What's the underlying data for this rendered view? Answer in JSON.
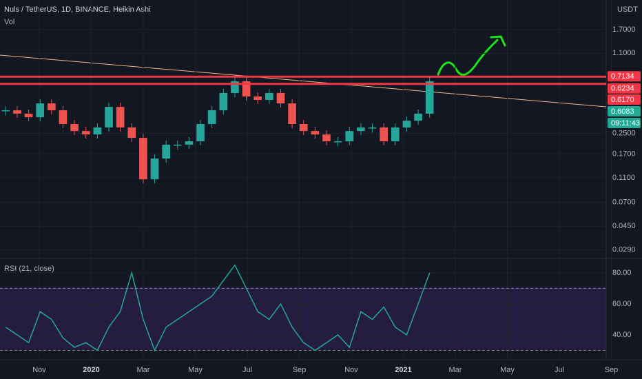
{
  "header": {
    "title": "Nuls / TetherUS, 1D, BINANCE, Heikin Ashi",
    "volume_label": "Vol",
    "currency": "USDT"
  },
  "price_pane": {
    "log": true,
    "ylim": [
      0.0248,
      2.94
    ],
    "yticks": [
      {
        "value": 1.7,
        "label": "1.7000"
      },
      {
        "value": 1.1,
        "label": "1.1000"
      },
      {
        "value": 0.25,
        "label": "0.2500"
      },
      {
        "value": 0.17,
        "label": "0.1700"
      },
      {
        "value": 0.11,
        "label": "0.1100"
      },
      {
        "value": 0.07,
        "label": "0.0700"
      },
      {
        "value": 0.045,
        "label": "0.0450"
      },
      {
        "value": 0.029,
        "label": "0.0290"
      }
    ],
    "levels": [
      {
        "value": 0.7134,
        "label": "0.7134",
        "color": "#f23645"
      },
      {
        "value": 0.6234,
        "label": "0.6234",
        "color": "#f23645"
      }
    ],
    "tags": [
      {
        "label": "0.6170",
        "color": "#f23645"
      },
      {
        "label": "0.6083",
        "color": "#22ab94"
      },
      {
        "label": "09:11:43",
        "color": "#22ab94"
      }
    ],
    "up_color": "#26a69a",
    "down_color": "#ef5350",
    "closes": [
      0.383,
      0.36,
      0.337,
      0.435,
      0.383,
      0.297,
      0.261,
      0.245,
      0.279,
      0.408,
      0.279,
      0.23,
      0.107,
      0.157,
      0.203,
      0.203,
      0.216,
      0.297,
      0.383,
      0.527,
      0.654,
      0.494,
      0.464,
      0.527,
      0.435,
      0.297,
      0.261,
      0.245,
      0.216,
      0.216,
      0.261,
      0.279,
      0.279,
      0.216,
      0.279,
      0.316,
      0.36,
      0.654
    ]
  },
  "rsi_pane": {
    "title": "RSI (21, close)",
    "ylim": [
      24,
      89.3
    ],
    "yticks": [
      {
        "value": 80,
        "label": "80.00"
      },
      {
        "value": 60,
        "label": "60.00"
      },
      {
        "value": 40,
        "label": "40.00"
      }
    ],
    "bands": [
      70,
      30
    ],
    "color": "#26a69a",
    "values": [
      45,
      40,
      35,
      55,
      50,
      38,
      32,
      35,
      30,
      45,
      55,
      80,
      50,
      30,
      45,
      50,
      55,
      60,
      65,
      75,
      85,
      70,
      55,
      50,
      60,
      45,
      35,
      30,
      35,
      40,
      32,
      55,
      50,
      58,
      45,
      40,
      60,
      80
    ]
  },
  "time_axis": [
    "Nov",
    "2020",
    "Mar",
    "May",
    "Jul",
    "Sep",
    "Nov",
    "2021",
    "Mar",
    "May",
    "Jul",
    "Sep"
  ]
}
